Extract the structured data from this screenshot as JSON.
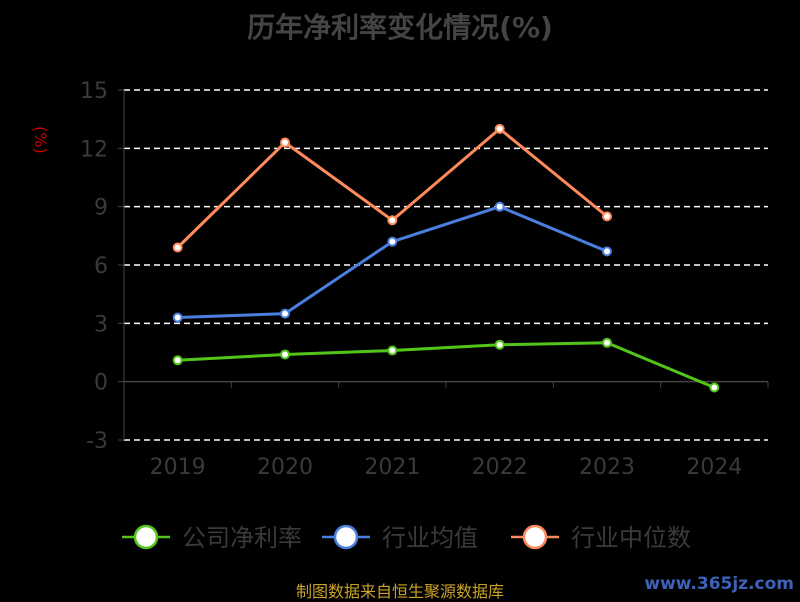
{
  "chart_data": {
    "type": "line",
    "title": "历年净利率变化情况(%)",
    "ylabel": "(%)",
    "categories": [
      "2019",
      "2020",
      "2021",
      "2022",
      "2023",
      "2024"
    ],
    "ylim": [
      -3,
      15
    ],
    "yticks": [
      -3,
      0,
      3,
      6,
      9,
      12,
      15
    ],
    "grid": true,
    "legend_position": "bottom",
    "series": [
      {
        "name": "公司净利率",
        "color": "#52c41a",
        "values": [
          1.1,
          1.4,
          1.6,
          1.9,
          2.0,
          -0.3
        ]
      },
      {
        "name": "行业均值",
        "color": "#4a7fe0",
        "values": [
          3.3,
          3.5,
          7.2,
          9.0,
          6.7,
          null
        ]
      },
      {
        "name": "行业中位数",
        "color": "#ff8a5c",
        "values": [
          6.9,
          12.3,
          8.3,
          13.0,
          8.5,
          null
        ]
      }
    ]
  },
  "footer": {
    "source": "制图数据来自恒生聚源数据库",
    "watermark": "www.365jz.com"
  }
}
